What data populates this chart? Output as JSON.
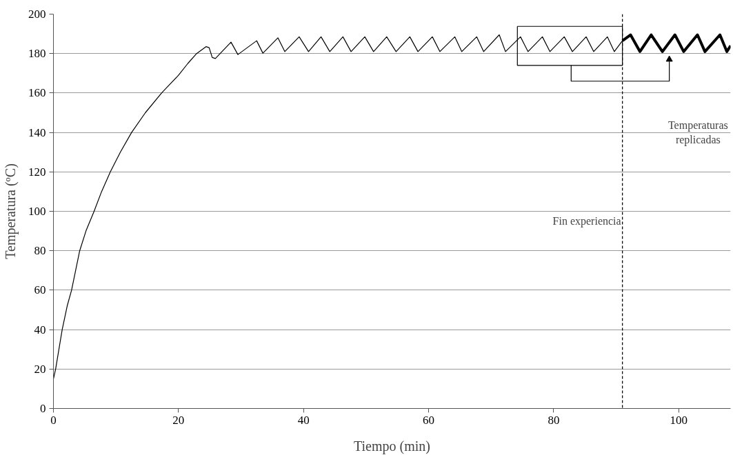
{
  "chart_data": {
    "type": "line",
    "xlabel": "Tiempo (min)",
    "ylabel": "Temperatura (ºC)",
    "xlim": [
      0,
      108.3
    ],
    "xticks": [
      0,
      20,
      40,
      60,
      80,
      100
    ],
    "ylim": [
      0,
      200
    ],
    "yticks": [
      0,
      20,
      40,
      60,
      80,
      100,
      120,
      140,
      160,
      180,
      200
    ],
    "grid": "y",
    "marker": "none",
    "line_style": "solid",
    "series": [
      {
        "color": "#000000",
        "x": [
          0,
          0.35,
          1.4,
          2.2,
          2.9,
          4.2,
          5.2,
          6.5,
          7.7,
          9.1,
          10.7,
          12.5,
          14.7,
          17.3,
          18.5,
          20,
          21.5,
          22.9,
          24.4,
          24.9,
          25.4,
          25.9,
          28.4,
          29.5,
          32.5,
          33.5,
          35.9,
          37.0,
          39.3,
          40.8,
          42.8,
          44.2,
          46.3,
          47.6,
          49.8,
          51.2,
          53.3,
          54.8,
          57.0,
          58.3,
          60.6,
          61.8,
          64.2,
          65.3,
          67.7,
          68.8,
          71.3,
          72.3,
          74.7,
          75.9,
          78.2,
          79.4,
          81.7,
          83.0,
          85.2,
          86.4,
          88.6,
          89.7,
          91.0
        ],
        "values": [
          15,
          20,
          40,
          52,
          60,
          80,
          90,
          100,
          110,
          120,
          130,
          140,
          150,
          160,
          164,
          169,
          175,
          180,
          183.5,
          183,
          178,
          177.5,
          185.8,
          179.5,
          186.5,
          180.2,
          188,
          181,
          188.5,
          181,
          188.5,
          181,
          188.5,
          181,
          188.5,
          181,
          188.5,
          181,
          188.5,
          181,
          188.5,
          181,
          188.5,
          181,
          188.5,
          181,
          189.5,
          181,
          188.5,
          181,
          188.5,
          181,
          188.5,
          181,
          188.5,
          181,
          188.5,
          181,
          186.5
        ]
      },
      {
        "color": "#000000",
        "x": [
          91.0,
          92.3,
          93.8,
          95.6,
          97.4,
          99.4,
          100.8,
          103.0,
          104.2,
          106.6,
          107.7,
          108.3
        ],
        "values": [
          186.5,
          189.5,
          181,
          189.5,
          181,
          189.5,
          181,
          189.5,
          181,
          189.5,
          181,
          184
        ]
      }
    ],
    "ref_lines": [
      {
        "axis": "x",
        "value": 91,
        "label": "Fin experiencia",
        "line_style": "dashed",
        "color": "#000000"
      }
    ],
    "annotations": [
      "Temperaturas\nreplicadas"
    ]
  }
}
